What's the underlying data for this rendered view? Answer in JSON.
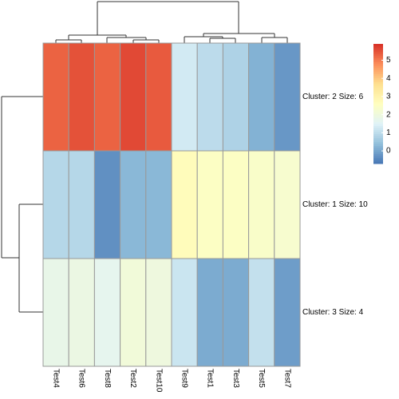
{
  "chart_data": {
    "type": "heatmap",
    "columns": [
      "Test4",
      "Test6",
      "Test8",
      "Test2",
      "Test10",
      "Test9",
      "Test1",
      "Test3",
      "Test5",
      "Test7"
    ],
    "rows": [
      "Cluster: 2 Size: 6",
      "Cluster: 1 Size: 10",
      "Cluster: 3 Size: 4"
    ],
    "values": [
      [
        5.3,
        5.5,
        5.3,
        5.6,
        5.4,
        1.3,
        1.0,
        0.8,
        0.2,
        -0.2
      ],
      [
        0.9,
        0.9,
        -0.3,
        0.3,
        0.3,
        2.7,
        2.5,
        2.5,
        2.4,
        2.3
      ],
      [
        1.8,
        1.9,
        1.7,
        2.1,
        2.0,
        1.2,
        0.1,
        0.1,
        1.1,
        -0.1
      ]
    ],
    "colors": [
      "#4575b4",
      "#91bfdb",
      "#e0f3f8",
      "#ffffbf",
      "#fee090",
      "#fc8d59",
      "#d73027"
    ],
    "zlim": [
      -0.7,
      5.9
    ],
    "zticks": [
      0,
      1,
      2,
      3,
      4,
      5
    ]
  }
}
